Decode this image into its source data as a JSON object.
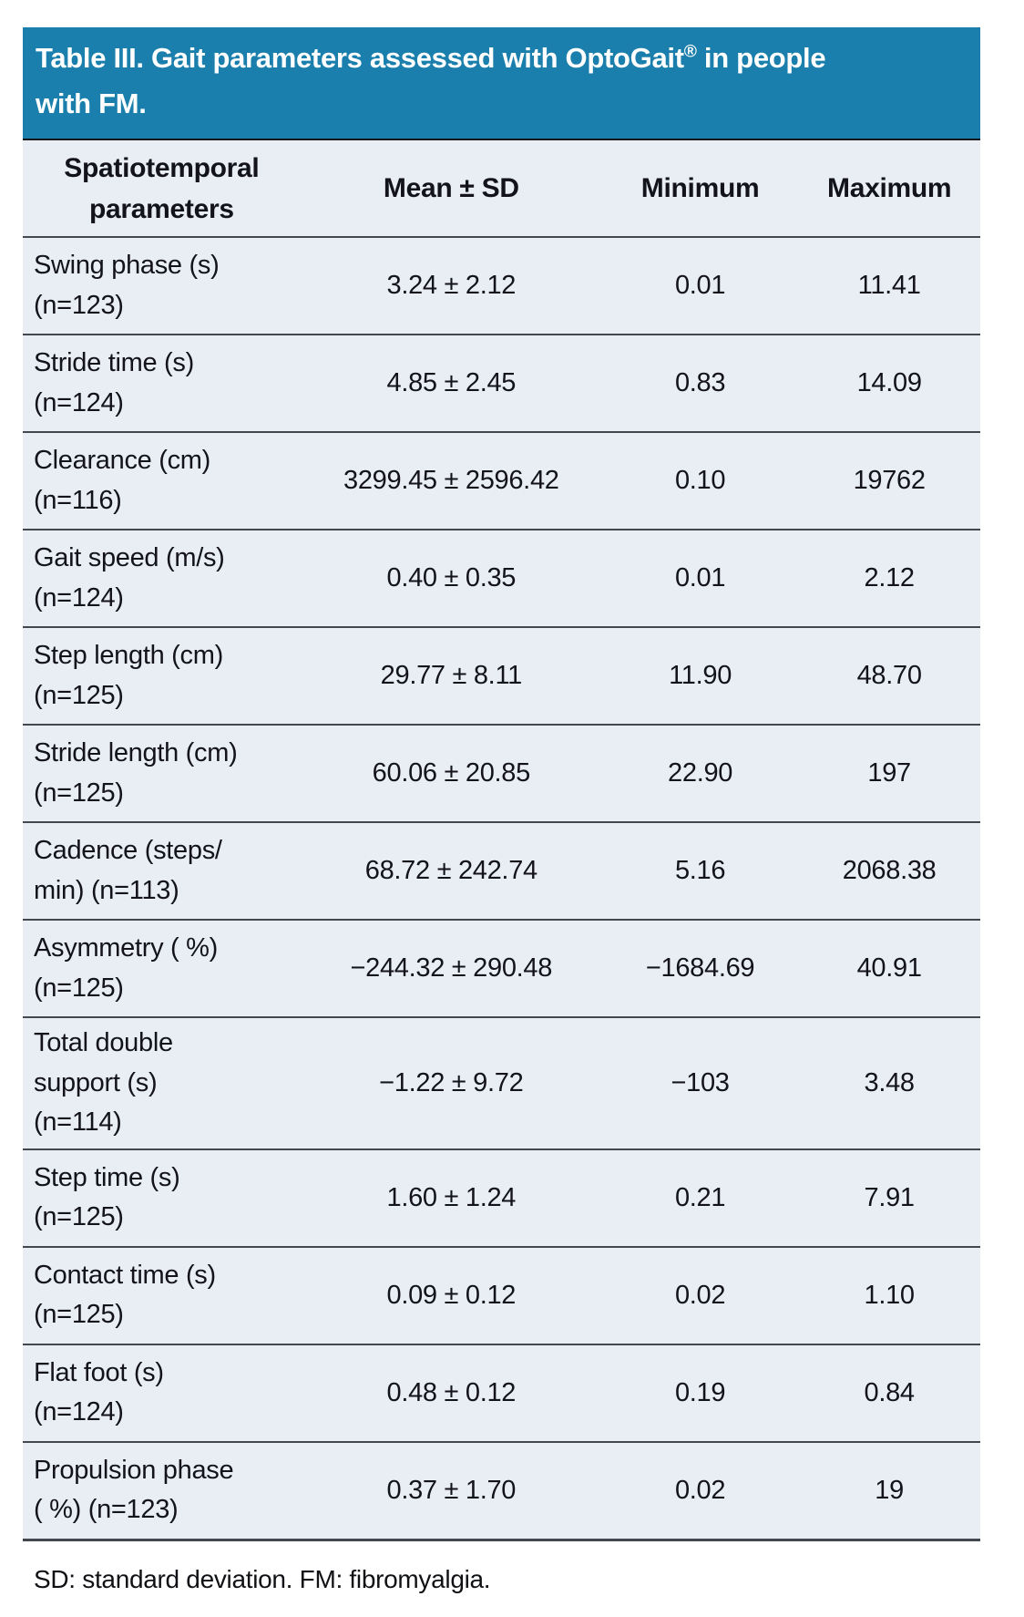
{
  "table": {
    "title": {
      "text_before_reg": "Table III. Gait parameters assessed with OptoGait",
      "reg_mark": "®",
      "text_after_reg": " in people with FM."
    },
    "colors": {
      "title_bar_bg": "#1a7fac",
      "title_text": "#ffffff",
      "body_bg": "#e9edf4",
      "row_line": "#43484f",
      "body_text": "#131419"
    },
    "columns": [
      "Spatiotemporal\nparameters",
      "Mean ± SD",
      "Minimum",
      "Maximum"
    ],
    "rows": [
      {
        "parameter": "Swing phase (s)\n(n=123)",
        "mean_sd": "3.24 ± 2.12",
        "minimum": "0.01",
        "maximum": "11.41"
      },
      {
        "parameter": "Stride time (s)\n(n=124)",
        "mean_sd": "4.85 ± 2.45",
        "minimum": "0.83",
        "maximum": "14.09"
      },
      {
        "parameter": "Clearance (cm)\n(n=116)",
        "mean_sd": "3299.45 ± 2596.42",
        "minimum": "0.10",
        "maximum": "19762"
      },
      {
        "parameter": "Gait speed (m/s)\n(n=124)",
        "mean_sd": "0.40 ± 0.35",
        "minimum": "0.01",
        "maximum": "2.12"
      },
      {
        "parameter": "Step length (cm)\n(n=125)",
        "mean_sd": "29.77 ± 8.11",
        "minimum": "11.90",
        "maximum": "48.70"
      },
      {
        "parameter": "Stride length (cm)\n(n=125)",
        "mean_sd": "60.06 ± 20.85",
        "minimum": "22.90",
        "maximum": "197"
      },
      {
        "parameter": "Cadence (steps/\nmin) (n=113)",
        "mean_sd": "68.72 ± 242.74",
        "minimum": "5.16",
        "maximum": "2068.38"
      },
      {
        "parameter": "Asymmetry ( %)\n(n=125)",
        "mean_sd": "−244.32 ± 290.48",
        "minimum": "−1684.69",
        "maximum": "40.91"
      },
      {
        "parameter": "Total double\nsupport (s)\n(n=114)",
        "mean_sd": "−1.22 ± 9.72",
        "minimum": "−103",
        "maximum": "3.48"
      },
      {
        "parameter": "Step time (s)\n(n=125)",
        "mean_sd": "1.60 ± 1.24",
        "minimum": "0.21",
        "maximum": "7.91"
      },
      {
        "parameter": "Contact time (s)\n(n=125)",
        "mean_sd": "0.09 ± 0.12",
        "minimum": "0.02",
        "maximum": "1.10"
      },
      {
        "parameter": "Flat foot (s)\n(n=124)",
        "mean_sd": "0.48 ± 0.12",
        "minimum": "0.19",
        "maximum": "0.84"
      },
      {
        "parameter": "Propulsion phase\n( %) (n=123)",
        "mean_sd": "0.37 ± 1.70",
        "minimum": "0.02",
        "maximum": "19"
      }
    ],
    "footnote": "SD: standard deviation. FM: fibromyalgia."
  }
}
